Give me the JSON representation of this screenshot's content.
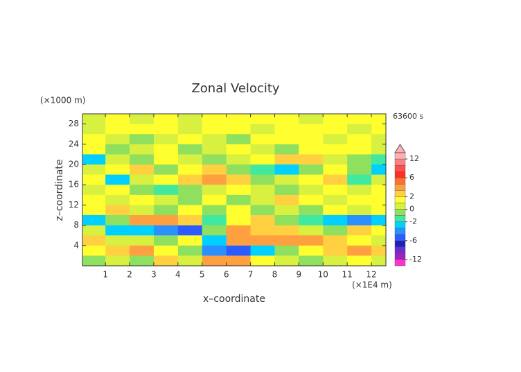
{
  "chart_data": {
    "type": "contour",
    "title": "Zonal Velocity",
    "xlabel": "x–coordinate",
    "ylabel": "z–coordinate",
    "x_unit": "(×1E4 m)",
    "y_unit": "(×1000 m)",
    "time_label": "63600 s",
    "xlim": [
      0.05,
      12.6
    ],
    "ylim": [
      0,
      30
    ],
    "xticks": [
      1,
      2,
      3,
      4,
      5,
      6,
      7,
      8,
      9,
      10,
      11,
      12
    ],
    "yticks": [
      4,
      8,
      12,
      16,
      20,
      24,
      28
    ],
    "field": {
      "x": [
        0.5,
        1.5,
        2.5,
        3.5,
        4.5,
        5.5,
        6.5,
        7.5,
        8.5,
        9.5,
        10.5,
        11.5,
        12.5
      ],
      "z": [
        29,
        27,
        25,
        23,
        21,
        19,
        17,
        15,
        13,
        11,
        9,
        7,
        5,
        3,
        1
      ],
      "values": [
        [
          0.5,
          1,
          0.5,
          1,
          0.5,
          1,
          1,
          1.5,
          1,
          0.5,
          1,
          1.5,
          1
        ],
        [
          0.5,
          1,
          1.5,
          1,
          0.5,
          1,
          1,
          0.5,
          1,
          1.5,
          1,
          0.5,
          1
        ],
        [
          1,
          0.5,
          -0.5,
          0.5,
          1,
          0.5,
          -0.5,
          1,
          1.5,
          1,
          0.5,
          1,
          0.5
        ],
        [
          1,
          -0.5,
          0.5,
          1,
          -0.5,
          0.5,
          1,
          0.5,
          -0.5,
          1,
          1.5,
          1,
          0.5
        ],
        [
          -2.5,
          0.5,
          -0.5,
          1,
          0.5,
          -0.5,
          0.5,
          1,
          2.5,
          2.5,
          0.5,
          -0.5,
          -2
        ],
        [
          0.5,
          1,
          2.5,
          -0.5,
          1,
          2.5,
          -0.5,
          -2,
          -2.5,
          -0.5,
          1,
          -0.5,
          -2.5
        ],
        [
          1,
          -2.5,
          0.5,
          1,
          2.5,
          3.5,
          2.5,
          -0.5,
          0.5,
          1,
          2.5,
          -2,
          0.5
        ],
        [
          0.5,
          1,
          -0.5,
          -2,
          -0.5,
          0.5,
          1,
          0.5,
          -0.5,
          0.5,
          1,
          0.5,
          1
        ],
        [
          1,
          0.5,
          1,
          0.5,
          -0.5,
          1,
          -0.5,
          0.5,
          2.5,
          1,
          0.5,
          1,
          1.5
        ],
        [
          1,
          2.5,
          0.5,
          -0.5,
          1,
          -0.5,
          1,
          -0.5,
          0.5,
          -0.5,
          1,
          0.5,
          1
        ],
        [
          -2.5,
          -0.5,
          3.5,
          3.5,
          2.5,
          -2,
          1,
          2.5,
          -0.5,
          -2,
          -2.5,
          -3.5,
          -2.5
        ],
        [
          0.5,
          -2.5,
          -2.5,
          -3.5,
          -4.5,
          -0.5,
          3.5,
          2.5,
          2.5,
          0.5,
          -0.5,
          2.5,
          1
        ],
        [
          2.5,
          0.5,
          0.5,
          -0.5,
          1,
          -2.5,
          3.5,
          3.5,
          3.5,
          3.5,
          2.5,
          1,
          0.5
        ],
        [
          1,
          2.5,
          3.5,
          1,
          -0.5,
          -3.5,
          -4.5,
          -2.5,
          -0.5,
          1,
          2.5,
          3.5,
          2.5
        ],
        [
          -0.5,
          0.5,
          -0.5,
          2.5,
          0.5,
          3.5,
          3.5,
          1,
          0.5,
          -0.5,
          0.5,
          1,
          0.5
        ]
      ]
    },
    "colorbar": {
      "levels": [
        -14,
        -12,
        -10,
        -8,
        -6,
        -4,
        -3,
        -2,
        -1,
        0,
        1,
        2,
        3,
        4,
        6,
        8,
        10,
        12,
        14
      ],
      "colors": [
        "#ff33cc",
        "#a020c0",
        "#6a2fd0",
        "#2020c0",
        "#2a5cff",
        "#2a90ff",
        "#00d0ff",
        "#40e8a0",
        "#90e060",
        "#d8f040",
        "#ffff30",
        "#ffd040",
        "#ffa040",
        "#ff7030",
        "#ff3020",
        "#ff5050",
        "#ff8080",
        "#ffb0b0"
      ],
      "ticks": [
        12,
        6,
        2,
        0,
        -2,
        -6,
        -12
      ]
    }
  }
}
